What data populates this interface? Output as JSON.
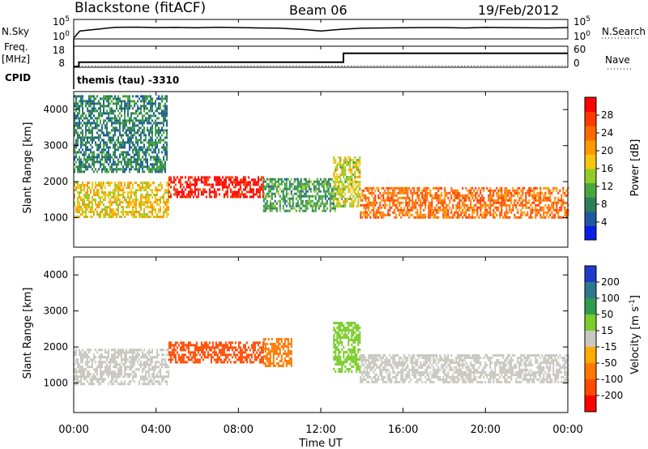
{
  "header": {
    "title": "Blackstone (fitACF)",
    "beam": "Beam 06",
    "date": "19/Feb/2012"
  },
  "left_labels": {
    "nsky": "N.Sky",
    "freq": "Freq.",
    "freq_unit": "[MHz]",
    "cpid": "CPID"
  },
  "right_labels": {
    "nsearch": "N.Search",
    "nave": "Nave"
  },
  "cpid_text": "themis (tau) -3310",
  "x_axis": {
    "label": "Time UT",
    "ticks": [
      "00:00",
      "04:00",
      "08:00",
      "12:00",
      "16:00",
      "20:00",
      "00:00"
    ]
  },
  "chart_data": [
    {
      "type": "line",
      "panel": "noise",
      "y_scale": "log",
      "left_ticks": [
        "10^5",
        "10^0"
      ],
      "right_ticks": [
        "10^5",
        "10^0"
      ],
      "series": [
        {
          "name": "N.Sky",
          "style": "solid",
          "x": [
            0,
            0.3,
            2,
            3,
            4,
            5,
            6,
            7,
            8,
            9,
            10,
            11,
            12,
            13,
            14,
            15,
            16,
            17,
            18,
            19,
            20,
            21,
            22,
            23,
            24
          ],
          "y": [
            1,
            100,
            1000,
            1200,
            900,
            1000,
            800,
            1100,
            900,
            700,
            600,
            300,
            100,
            300,
            600,
            700,
            800,
            900,
            900,
            700,
            1000,
            900,
            800,
            700,
            900
          ]
        },
        {
          "name": "N.Search",
          "style": "dotted",
          "x": [],
          "y": []
        }
      ]
    },
    {
      "type": "line",
      "panel": "frequency",
      "left_ticks": [
        "18",
        "8"
      ],
      "right_ticks": [
        "60",
        "0"
      ],
      "series": [
        {
          "name": "Freq.",
          "style": "solid",
          "x": [
            0,
            0.25,
            0.25,
            13.1,
            13.1,
            24
          ],
          "y": [
            8,
            8,
            10.2,
            10.2,
            14.8,
            14.8
          ]
        },
        {
          "name": "Nave",
          "style": "dotted",
          "x": [
            0.25,
            24
          ],
          "y": [
            8.3,
            8.3
          ]
        }
      ]
    },
    {
      "type": "heatmap",
      "panel": "power",
      "xlabel": "",
      "ylabel": "Slant Range [km]",
      "xlim": [
        0,
        24
      ],
      "ylim": [
        180,
        4500
      ],
      "y_ticks": [
        1000,
        2000,
        3000,
        4000
      ],
      "colorbar": {
        "label": "Power [dB]",
        "ticks": [
          4,
          8,
          12,
          16,
          20,
          24,
          28
        ],
        "range": [
          0,
          32
        ],
        "colors": [
          "#0a1ee6",
          "#1e5aa0",
          "#2e7f5a",
          "#46a83c",
          "#92cc2a",
          "#f3c612",
          "#ff9900",
          "#ff6a00",
          "#ff3a00",
          "#ff0000"
        ]
      },
      "bands": [
        {
          "region": "main F-region band",
          "x": [
            0,
            4.6
          ],
          "range_km": [
            1050,
            2000
          ],
          "power_db": 18
        },
        {
          "region": "intense patch",
          "x": [
            4.6,
            9.2
          ],
          "range_km": [
            1550,
            2150
          ],
          "power_db": 30
        },
        {
          "region": "weak band",
          "x": [
            9.2,
            12.7
          ],
          "range_km": [
            1200,
            2100
          ],
          "power_db": 10
        },
        {
          "region": "diagonal feature",
          "x": [
            12.6,
            13.9
          ],
          "range_km": [
            1300,
            2700
          ],
          "power_db": 16
        },
        {
          "region": "main band evening",
          "x": [
            13.9,
            24
          ],
          "range_km": [
            1000,
            1850
          ],
          "power_db": 24
        },
        {
          "region": "upper echoes",
          "x": [
            0,
            4.5
          ],
          "range_km": [
            2300,
            4400
          ],
          "power_db": 8
        }
      ]
    },
    {
      "type": "heatmap",
      "panel": "velocity",
      "xlabel": "Time UT",
      "ylabel": "Slant Range [km]",
      "xlim": [
        0,
        24
      ],
      "ylim": [
        180,
        4500
      ],
      "y_ticks": [
        1000,
        2000,
        3000,
        4000
      ],
      "colorbar": {
        "label": "Velocity [m s^-1]",
        "ticks": [
          200,
          100,
          50,
          15,
          -15,
          -50,
          -100,
          -200
        ],
        "colors": [
          "#1e3cc8",
          "#2e7a8c",
          "#2e9e4e",
          "#7acc2a",
          "#c8c8c0",
          "#ffaa00",
          "#ff7800",
          "#ff4a00",
          "#ff0000"
        ]
      },
      "bands": [
        {
          "region": "ground scatter",
          "x": [
            0,
            4.6
          ],
          "range_km": [
            1000,
            1950
          ],
          "velocity": 0
        },
        {
          "region": "westward flow patch",
          "x": [
            4.6,
            9.2
          ],
          "range_km": [
            1550,
            2150
          ],
          "velocity": -180
        },
        {
          "region": "moderate flow",
          "x": [
            9.2,
            10.6
          ],
          "range_km": [
            1500,
            2250
          ],
          "velocity": -80
        },
        {
          "region": "diagonal feature",
          "x": [
            12.6,
            13.9
          ],
          "range_km": [
            1300,
            2700
          ],
          "velocity": 40
        },
        {
          "region": "ground scatter evening",
          "x": [
            13.9,
            24
          ],
          "range_km": [
            1000,
            1800
          ],
          "velocity": 0
        }
      ]
    }
  ]
}
